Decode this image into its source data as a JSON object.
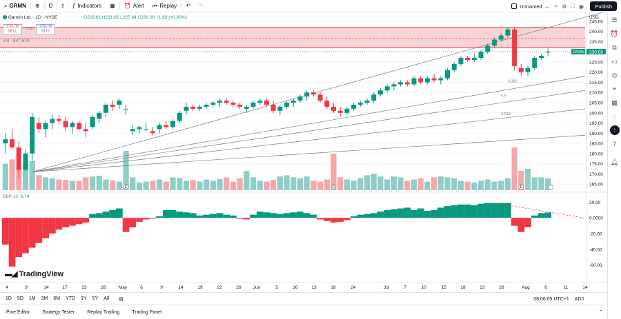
{
  "toolbar": {
    "symbol": "GRMN",
    "interval": "D",
    "indicators_label": "Indicators",
    "alert_label": "Alert",
    "replay_label": "Replay",
    "layout_name": "Unnamed",
    "publish_label": "Publish"
  },
  "legend": {
    "title": "Garmin Ltd. · 1D · NYSE",
    "ohlc": "O229.61 H231.65 L227.64 C230.08 +1.83 (+0.80%)",
    "sell_price": "230.08",
    "sell_label": "SELL",
    "spread": "0.00",
    "buy_price": "230.08",
    "buy_label": "BUY",
    "volume": "Vol · 847.67K"
  },
  "indicator": {
    "label": "BBP 13",
    "value": "6.74"
  },
  "price_axis": {
    "currency": "USD",
    "ticks": [
      "245.00",
      "240.00",
      "235.00",
      "230.00",
      "225.00",
      "220.00",
      "215.00",
      "210.00",
      "205.00",
      "200.00",
      "195.00",
      "190.00",
      "185.00",
      "180.00",
      "175.00",
      "170.00",
      "165.00"
    ],
    "last_symbol": "GRMN",
    "last_price": "230.08"
  },
  "bbp_axis": {
    "ticks": [
      "20.00",
      "0.0000",
      "-20.00",
      "-40.00",
      "-60.00"
    ]
  },
  "time_axis": {
    "labels": [
      "4",
      "9",
      "14",
      "17",
      "23",
      "28",
      "May",
      "6",
      "9",
      "14",
      "19",
      "22",
      "28",
      "Jun",
      "5",
      "10",
      "13",
      "18",
      "24",
      "Jul",
      "7",
      "10",
      "15",
      "18",
      "23",
      "28",
      "Aug",
      "6",
      "11",
      "14"
    ]
  },
  "fib_labels": [
    "0.382",
    "0.5",
    "0.618"
  ],
  "event_markers": [
    "E",
    "D",
    "E"
  ],
  "bottom_bar": {
    "ranges": [
      "1D",
      "5D",
      "1M",
      "3M",
      "6M",
      "YTD",
      "1Y",
      "5Y",
      "All"
    ],
    "clock": "08:06:05 UTC+1",
    "adj": "ADJ"
  },
  "tabs": [
    "Pine Editor",
    "Strategy Tester",
    "Replay Trading",
    "Trading Panel"
  ],
  "brand": "TradingView",
  "colors": {
    "up": "#089981",
    "down": "#f23645",
    "vol_up": "#8ecdc8",
    "vol_down": "#f7a6a9",
    "zone_fill": "#f7c5c8",
    "zone_border": "#f23645"
  },
  "chart_data": {
    "type": "candlestick",
    "ylim": [
      162,
      248
    ],
    "resistance_zone": [
      232,
      242
    ],
    "candles": [
      {
        "o": 185,
        "h": 190,
        "l": 180,
        "c": 187
      },
      {
        "o": 187,
        "h": 192,
        "l": 182,
        "c": 183
      },
      {
        "o": 183,
        "h": 186,
        "l": 168,
        "c": 172
      },
      {
        "o": 172,
        "h": 182,
        "l": 171,
        "c": 180
      },
      {
        "o": 180,
        "h": 200,
        "l": 176,
        "c": 198
      },
      {
        "o": 195,
        "h": 198,
        "l": 190,
        "c": 192
      },
      {
        "o": 192,
        "h": 196,
        "l": 188,
        "c": 195
      },
      {
        "o": 195,
        "h": 199,
        "l": 192,
        "c": 197
      },
      {
        "o": 197,
        "h": 199,
        "l": 194,
        "c": 196
      },
      {
        "o": 196,
        "h": 198,
        "l": 191,
        "c": 193
      },
      {
        "o": 193,
        "h": 196,
        "l": 190,
        "c": 195
      },
      {
        "o": 195,
        "h": 196,
        "l": 191,
        "c": 192
      },
      {
        "o": 192,
        "h": 195,
        "l": 188,
        "c": 191
      },
      {
        "o": 193,
        "h": 199,
        "l": 192,
        "c": 198
      },
      {
        "o": 197,
        "h": 201,
        "l": 195,
        "c": 200
      },
      {
        "o": 200,
        "h": 205,
        "l": 198,
        "c": 204
      },
      {
        "o": 204,
        "h": 206,
        "l": 201,
        "c": 203
      },
      {
        "o": 204,
        "h": 207,
        "l": 202,
        "c": 206
      },
      {
        "o": 202,
        "h": 204,
        "l": 199,
        "c": 202
      },
      {
        "o": 191,
        "h": 194,
        "l": 189,
        "c": 192
      },
      {
        "o": 192,
        "h": 194,
        "l": 190,
        "c": 193
      },
      {
        "o": 192,
        "h": 195,
        "l": 191,
        "c": 192
      },
      {
        "o": 191,
        "h": 193,
        "l": 189,
        "c": 190
      },
      {
        "o": 192,
        "h": 195,
        "l": 190,
        "c": 194
      },
      {
        "o": 194,
        "h": 196,
        "l": 192,
        "c": 193
      },
      {
        "o": 193,
        "h": 197,
        "l": 192,
        "c": 196
      },
      {
        "o": 196,
        "h": 201,
        "l": 195,
        "c": 200
      },
      {
        "o": 201,
        "h": 205,
        "l": 199,
        "c": 203
      },
      {
        "o": 203,
        "h": 204,
        "l": 201,
        "c": 202
      },
      {
        "o": 202,
        "h": 204,
        "l": 201,
        "c": 203
      },
      {
        "o": 203,
        "h": 205,
        "l": 202,
        "c": 204
      },
      {
        "o": 204,
        "h": 206,
        "l": 203,
        "c": 205
      },
      {
        "o": 205,
        "h": 207,
        "l": 203,
        "c": 206
      },
      {
        "o": 206,
        "h": 207,
        "l": 204,
        "c": 205
      },
      {
        "o": 205,
        "h": 206,
        "l": 203,
        "c": 204
      },
      {
        "o": 204,
        "h": 205,
        "l": 202,
        "c": 203
      },
      {
        "o": 202,
        "h": 204,
        "l": 200,
        "c": 203
      },
      {
        "o": 203,
        "h": 206,
        "l": 202,
        "c": 205
      },
      {
        "o": 205,
        "h": 207,
        "l": 204,
        "c": 206
      },
      {
        "o": 206,
        "h": 207,
        "l": 203,
        "c": 204
      },
      {
        "o": 204,
        "h": 206,
        "l": 200,
        "c": 201
      },
      {
        "o": 201,
        "h": 204,
        "l": 199,
        "c": 203
      },
      {
        "o": 203,
        "h": 206,
        "l": 202,
        "c": 205
      },
      {
        "o": 205,
        "h": 207,
        "l": 203,
        "c": 206
      },
      {
        "o": 206,
        "h": 209,
        "l": 205,
        "c": 208
      },
      {
        "o": 208,
        "h": 211,
        "l": 206,
        "c": 210
      },
      {
        "o": 210,
        "h": 211,
        "l": 208,
        "c": 209
      },
      {
        "o": 209,
        "h": 210,
        "l": 205,
        "c": 206
      },
      {
        "o": 206,
        "h": 208,
        "l": 202,
        "c": 203
      },
      {
        "o": 203,
        "h": 205,
        "l": 200,
        "c": 201
      },
      {
        "o": 201,
        "h": 203,
        "l": 198,
        "c": 200
      },
      {
        "o": 200,
        "h": 203,
        "l": 199,
        "c": 202
      },
      {
        "o": 202,
        "h": 205,
        "l": 201,
        "c": 204
      },
      {
        "o": 204,
        "h": 206,
        "l": 203,
        "c": 205
      },
      {
        "o": 205,
        "h": 207,
        "l": 204,
        "c": 206
      },
      {
        "o": 206,
        "h": 210,
        "l": 205,
        "c": 209
      },
      {
        "o": 209,
        "h": 212,
        "l": 208,
        "c": 211
      },
      {
        "o": 211,
        "h": 214,
        "l": 210,
        "c": 213
      },
      {
        "o": 213,
        "h": 215,
        "l": 211,
        "c": 214
      },
      {
        "o": 214,
        "h": 216,
        "l": 213,
        "c": 215
      },
      {
        "o": 215,
        "h": 216,
        "l": 213,
        "c": 214
      },
      {
        "o": 214,
        "h": 218,
        "l": 213,
        "c": 217
      },
      {
        "o": 217,
        "h": 218,
        "l": 214,
        "c": 215
      },
      {
        "o": 215,
        "h": 218,
        "l": 214,
        "c": 217
      },
      {
        "o": 217,
        "h": 219,
        "l": 215,
        "c": 216
      },
      {
        "o": 216,
        "h": 218,
        "l": 214,
        "c": 217
      },
      {
        "o": 217,
        "h": 222,
        "l": 216,
        "c": 221
      },
      {
        "o": 221,
        "h": 225,
        "l": 220,
        "c": 224
      },
      {
        "o": 224,
        "h": 228,
        "l": 223,
        "c": 227
      },
      {
        "o": 227,
        "h": 228,
        "l": 225,
        "c": 226
      },
      {
        "o": 226,
        "h": 229,
        "l": 225,
        "c": 227
      },
      {
        "o": 227,
        "h": 231,
        "l": 226,
        "c": 230
      },
      {
        "o": 230,
        "h": 234,
        "l": 229,
        "c": 233
      },
      {
        "o": 233,
        "h": 237,
        "l": 232,
        "c": 236
      },
      {
        "o": 236,
        "h": 239,
        "l": 235,
        "c": 238
      },
      {
        "o": 238,
        "h": 242,
        "l": 237,
        "c": 241
      },
      {
        "o": 241,
        "h": 242,
        "l": 221,
        "c": 223
      },
      {
        "o": 222,
        "h": 224,
        "l": 218,
        "c": 220
      },
      {
        "o": 220,
        "h": 223,
        "l": 218,
        "c": 222
      },
      {
        "o": 222,
        "h": 228,
        "l": 221,
        "c": 227
      },
      {
        "o": 227,
        "h": 229,
        "l": 226,
        "c": 228
      },
      {
        "o": 229.61,
        "h": 231.65,
        "l": 227.64,
        "c": 230.08
      }
    ],
    "volume": [
      0.62,
      0.72,
      0.55,
      0.62,
      0.68,
      0.35,
      0.3,
      0.28,
      0.25,
      0.24,
      0.22,
      0.22,
      0.3,
      0.32,
      0.34,
      0.25,
      0.23,
      0.2,
      0.92,
      0.3,
      0.18,
      0.2,
      0.22,
      0.25,
      0.2,
      0.3,
      0.28,
      0.22,
      0.24,
      0.2,
      0.25,
      0.22,
      0.26,
      0.3,
      0.2,
      0.28,
      0.45,
      0.3,
      0.22,
      0.2,
      0.24,
      0.32,
      0.35,
      0.3,
      0.28,
      0.32,
      0.22,
      0.2,
      0.25,
      0.85,
      0.3,
      0.25,
      0.22,
      0.28,
      0.35,
      0.38,
      0.32,
      0.25,
      0.32,
      0.3,
      0.22,
      0.25,
      0.28,
      0.2,
      0.3,
      0.32,
      0.3,
      0.28,
      0.22,
      0.2,
      0.18,
      0.22,
      0.25,
      0.2,
      0.22,
      0.28,
      1.0,
      0.45,
      0.5,
      0.3,
      0.3,
      0.28
    ],
    "bbp": [
      -34,
      -62,
      -50,
      -45,
      -38,
      -32,
      -26,
      -20,
      -15,
      -12,
      -10,
      -8,
      -6,
      5,
      6,
      8,
      10,
      12,
      -18,
      -12,
      -5,
      -2,
      -1,
      2,
      10,
      10,
      8,
      7,
      6,
      3,
      4,
      5,
      6,
      4,
      3,
      -1,
      -2,
      4,
      8,
      7,
      6,
      5,
      6,
      7,
      8,
      6,
      4,
      -2,
      -4,
      -6,
      -5,
      -3,
      2,
      4,
      5,
      6,
      8,
      10,
      11,
      12,
      13,
      10,
      12,
      9,
      10,
      13,
      15,
      16,
      17,
      17,
      16,
      18,
      19,
      19,
      19,
      19,
      -10,
      -18,
      -12,
      3,
      6,
      6.74
    ]
  }
}
